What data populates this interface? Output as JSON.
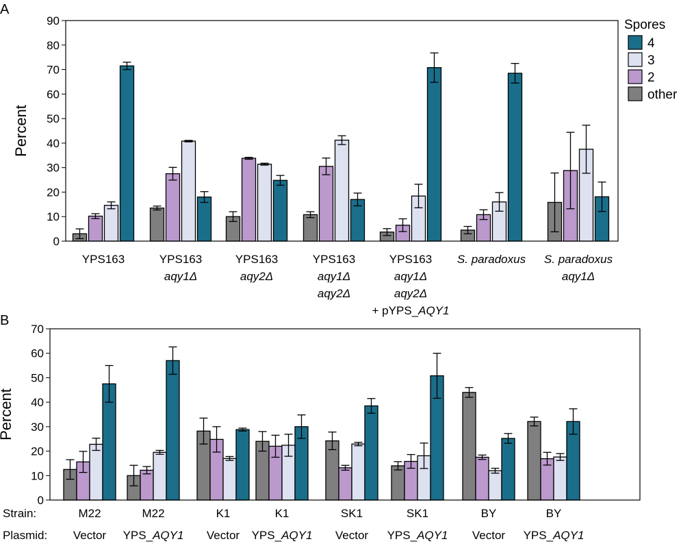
{
  "colors": {
    "4": "#1a6e8a",
    "3": "#dde1f0",
    "2": "#bb99cc",
    "other": "#7f7f7f"
  },
  "chart_data": [
    {
      "panel": "A",
      "type": "bar",
      "ylabel": "Percent",
      "ylim": [
        0,
        90
      ],
      "yticks": [
        0,
        10,
        20,
        30,
        40,
        50,
        60,
        70,
        80,
        90
      ],
      "legend": {
        "title": "Spores",
        "placement": "top-right",
        "entries": [
          "4",
          "3",
          "2",
          "other"
        ]
      },
      "series_order": [
        "other",
        "2",
        "3",
        "4"
      ],
      "groups": [
        {
          "label": [
            "YPS163"
          ],
          "italic": [
            false
          ],
          "values": {
            "other": 3.0,
            "2": 10.2,
            "3": 14.6,
            "4": 71.5
          },
          "errors": {
            "other": 2.0,
            "2": 1.0,
            "3": 1.4,
            "4": 1.5
          }
        },
        {
          "label": [
            "YPS163",
            "aqy1Δ"
          ],
          "italic": [
            false,
            true
          ],
          "values": {
            "other": 13.5,
            "2": 27.5,
            "3": 40.8,
            "4": 18.0
          },
          "errors": {
            "other": 0.8,
            "2": 2.6,
            "3": 0.3,
            "4": 2.2
          }
        },
        {
          "label": [
            "YPS163",
            "aqy2Δ"
          ],
          "italic": [
            false,
            true
          ],
          "values": {
            "other": 10.0,
            "2": 33.8,
            "3": 31.4,
            "4": 24.8
          },
          "errors": {
            "other": 2.0,
            "2": 0.4,
            "3": 0.4,
            "4": 2.0
          }
        },
        {
          "label": [
            "YPS163",
            "aqy1Δ",
            "aqy2Δ"
          ],
          "italic": [
            false,
            true,
            true
          ],
          "values": {
            "other": 10.8,
            "2": 30.5,
            "3": 41.2,
            "4": 17.0
          },
          "errors": {
            "other": 1.2,
            "2": 3.4,
            "3": 1.8,
            "4": 2.6
          }
        },
        {
          "label": [
            "YPS163",
            "aqy1Δ",
            "aqy2Δ",
            "+ pYPS_AQY1"
          ],
          "italic": [
            false,
            true,
            true,
            false
          ],
          "values": {
            "other": 3.7,
            "2": 6.5,
            "3": 18.4,
            "4": 70.8
          },
          "errors": {
            "other": 1.4,
            "2": 2.6,
            "3": 4.8,
            "4": 6.0
          }
        },
        {
          "label": [
            "S. paradoxus"
          ],
          "italic": [
            true
          ],
          "values": {
            "other": 4.5,
            "2": 10.8,
            "3": 16.0,
            "4": 68.5
          },
          "errors": {
            "other": 1.5,
            "2": 2.0,
            "3": 3.8,
            "4": 4.0
          }
        },
        {
          "label": [
            "S. paradoxus",
            "aqy1Δ"
          ],
          "italic": [
            true,
            true
          ],
          "values": {
            "other": 15.8,
            "2": 28.8,
            "3": 37.5,
            "4": 18.1
          },
          "errors": {
            "other": 12.0,
            "2": 15.6,
            "3": 9.8,
            "4": 6.0
          }
        }
      ]
    },
    {
      "panel": "B",
      "type": "bar",
      "ylabel": "Percent",
      "ylim": [
        0,
        70
      ],
      "yticks": [
        0,
        10,
        20,
        30,
        40,
        50,
        60,
        70
      ],
      "row_labels": [
        "Strain:",
        "Plasmid:"
      ],
      "series_order": [
        "other",
        "2",
        "3",
        "4"
      ],
      "groups": [
        {
          "strain": "M22",
          "plasmid": "Vector",
          "values": {
            "other": 12.5,
            "2": 15.6,
            "3": 22.8,
            "4": 47.5
          },
          "errors": {
            "other": 4.0,
            "2": 4.3,
            "3": 2.5,
            "4": 7.5
          }
        },
        {
          "strain": "M22",
          "plasmid": "YPS_AQY1",
          "values": {
            "other": 10.0,
            "2": 12.2,
            "3": 19.5,
            "4": 57.0
          },
          "errors": {
            "other": 4.2,
            "2": 1.5,
            "3": 0.8,
            "4": 5.6
          }
        },
        {
          "strain": "K1",
          "plasmid": "Vector",
          "values": {
            "other": 28.2,
            "2": 24.8,
            "3": 17.0,
            "4": 28.8
          },
          "errors": {
            "other": 5.3,
            "2": 5.2,
            "3": 0.8,
            "4": 0.6
          }
        },
        {
          "strain": "K1",
          "plasmid": "YPS_AQY1",
          "values": {
            "other": 24.0,
            "2": 22.0,
            "3": 22.4,
            "4": 30.0
          },
          "errors": {
            "other": 4.0,
            "2": 4.5,
            "3": 4.5,
            "4": 4.8
          }
        },
        {
          "strain": "SK1",
          "plasmid": "Vector",
          "values": {
            "other": 24.2,
            "2": 13.2,
            "3": 22.9,
            "4": 38.5
          },
          "errors": {
            "other": 3.6,
            "2": 1.0,
            "3": 0.7,
            "4": 3.0
          }
        },
        {
          "strain": "SK1",
          "plasmid": "YPS_AQY1",
          "values": {
            "other": 14.0,
            "2": 15.8,
            "3": 18.1,
            "4": 50.8
          },
          "errors": {
            "other": 1.7,
            "2": 2.8,
            "3": 5.2,
            "4": 9.2
          }
        },
        {
          "strain": "BY",
          "plasmid": "Vector",
          "values": {
            "other": 44.0,
            "2": 17.5,
            "3": 12.0,
            "4": 25.2
          },
          "errors": {
            "other": 2.0,
            "2": 0.9,
            "3": 1.0,
            "4": 2.0
          }
        },
        {
          "strain": "BY",
          "plasmid": "YPS_AQY1",
          "values": {
            "other": 32.1,
            "2": 16.9,
            "3": 17.6,
            "4": 32.1
          },
          "errors": {
            "other": 1.8,
            "2": 2.6,
            "3": 1.4,
            "4": 5.2
          }
        }
      ]
    }
  ]
}
